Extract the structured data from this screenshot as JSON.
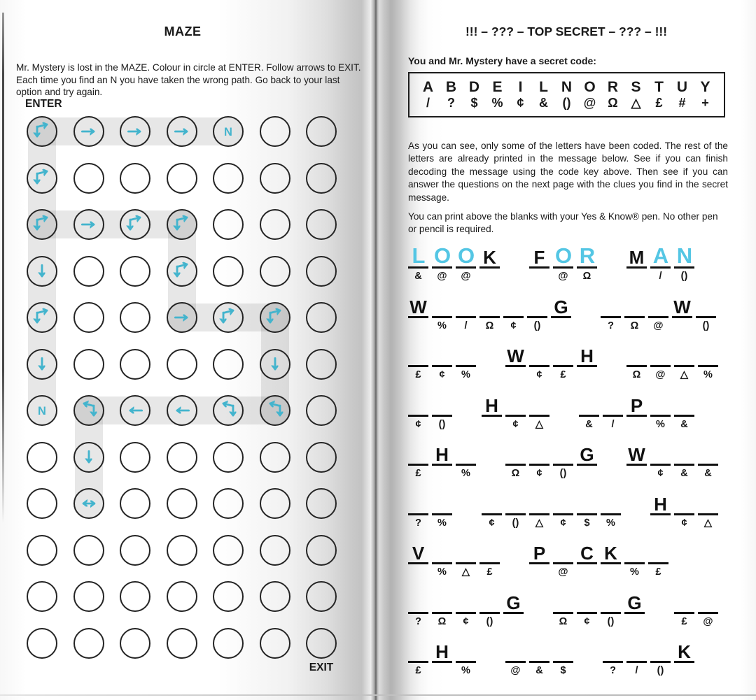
{
  "colors": {
    "arrow_blue": "#43b4cd",
    "pen_blue": "#54c6e4",
    "path_gray": "#e2e2e2",
    "circle_stroke": "#242424"
  },
  "left": {
    "title": "MAZE",
    "instructions": "Mr. Mystery is lost in the MAZE. Colour in circle at ENTER. Follow arrows to EXIT. Each time you find an N you have taken the wrong path. Go back to your last option and try again.",
    "enter_label": "ENTER",
    "exit_label": "EXIT",
    "maze": {
      "rows": 12,
      "cols": 7,
      "cell_legend": {
        "r": "right-arrow",
        "l": "left-arrow",
        "d": "down-arrow",
        "dr": "down-right-branch-arrow",
        "ld": "left-down-branch-arrow",
        "lr": "left-right-arrow",
        "n": "wrong-path-N",
        "": "empty"
      },
      "grid": [
        [
          "dr",
          "r",
          "r",
          "r",
          "n",
          "",
          ""
        ],
        [
          "dr",
          "",
          "",
          "",
          "",
          "",
          ""
        ],
        [
          "dr",
          "r",
          "dr",
          "dr",
          "",
          "",
          ""
        ],
        [
          "d",
          "",
          "",
          "dr",
          "",
          "",
          ""
        ],
        [
          "dr",
          "",
          "",
          "r",
          "dr",
          "dr",
          ""
        ],
        [
          "d",
          "",
          "",
          "",
          "",
          "d",
          ""
        ],
        [
          "n",
          "ld",
          "l",
          "l",
          "ld",
          "ld",
          ""
        ],
        [
          "",
          "d",
          "",
          "",
          "",
          "",
          ""
        ],
        [
          "",
          "lr",
          "",
          "",
          "",
          "",
          ""
        ],
        [
          "",
          "",
          "",
          "",
          "",
          "",
          ""
        ],
        [
          "",
          "",
          "",
          "",
          "",
          "",
          ""
        ],
        [
          "",
          "",
          "",
          "",
          "",
          "",
          ""
        ]
      ],
      "path_segments": [
        {
          "dir": "h",
          "row": 1,
          "from": 1,
          "to": 5
        },
        {
          "dir": "v",
          "col": 1,
          "from": 1,
          "to": 7
        },
        {
          "dir": "h",
          "row": 3,
          "from": 1,
          "to": 4
        },
        {
          "dir": "v",
          "col": 4,
          "from": 3,
          "to": 5
        },
        {
          "dir": "h",
          "row": 5,
          "from": 4,
          "to": 6
        },
        {
          "dir": "v",
          "col": 6,
          "from": 5,
          "to": 7
        },
        {
          "dir": "h",
          "row": 7,
          "from": 2,
          "to": 6
        },
        {
          "dir": "v",
          "col": 2,
          "from": 7,
          "to": 9
        }
      ]
    }
  },
  "right": {
    "title": "!!! – ??? – TOP SECRET – ??? – !!!",
    "lead": "You and Mr. Mystery have a secret code:",
    "code_key": {
      "letters": [
        "A",
        "B",
        "D",
        "E",
        "I",
        "L",
        "N",
        "O",
        "R",
        "S",
        "T",
        "U",
        "Y"
      ],
      "symbols": [
        "/",
        "?",
        "$",
        "%",
        "¢",
        "&",
        "()",
        "@",
        "Ω",
        "△",
        "£",
        "#",
        "+"
      ]
    },
    "para1": "As you can see, only some of the letters have been coded. The rest of the letters are already printed in the message below. See if you can finish decoding the message using the code key above. Then see if you can answer the questions on the next page with the clues you find in the secret message.",
    "para2": "You can print above the blanks with your Yes & Know® pen. No other pen or pencil is required.",
    "message": {
      "lines": [
        [
          [
            {
              "t": "L",
              "ink": "pen",
              "sym": "&"
            },
            {
              "t": "O",
              "ink": "pen",
              "sym": "@"
            },
            {
              "t": "O",
              "ink": "pen",
              "sym": "@"
            },
            {
              "t": "K",
              "ink": "print",
              "sym": ""
            }
          ],
          [
            {
              "t": "F",
              "ink": "print",
              "sym": ""
            },
            {
              "t": "O",
              "ink": "pen",
              "sym": "@"
            },
            {
              "t": "R",
              "ink": "pen",
              "sym": "Ω"
            }
          ],
          [
            {
              "t": "M",
              "ink": "print",
              "sym": ""
            },
            {
              "t": "A",
              "ink": "pen",
              "sym": "/"
            },
            {
              "t": "N",
              "ink": "pen",
              "sym": "()"
            }
          ]
        ],
        [
          [
            {
              "t": "W",
              "ink": "print",
              "sym": ""
            },
            {
              "t": "",
              "ink": "",
              "sym": "%"
            },
            {
              "t": "",
              "ink": "",
              "sym": "/"
            },
            {
              "t": "",
              "ink": "",
              "sym": "Ω"
            },
            {
              "t": "",
              "ink": "",
              "sym": "¢"
            },
            {
              "t": "",
              "ink": "",
              "sym": "()"
            },
            {
              "t": "G",
              "ink": "print",
              "sym": ""
            }
          ],
          [
            {
              "t": "",
              "ink": "",
              "sym": "?"
            },
            {
              "t": "",
              "ink": "",
              "sym": "Ω"
            },
            {
              "t": "",
              "ink": "",
              "sym": "@"
            },
            {
              "t": "W",
              "ink": "print",
              "sym": ""
            },
            {
              "t": "",
              "ink": "",
              "sym": "()"
            }
          ]
        ],
        [
          [
            {
              "t": "",
              "ink": "",
              "sym": "£"
            },
            {
              "t": "",
              "ink": "",
              "sym": "¢"
            },
            {
              "t": "",
              "ink": "",
              "sym": "%"
            }
          ],
          [
            {
              "t": "W",
              "ink": "print",
              "sym": ""
            },
            {
              "t": "",
              "ink": "",
              "sym": "¢"
            },
            {
              "t": "",
              "ink": "",
              "sym": "£"
            },
            {
              "t": "H",
              "ink": "print",
              "sym": ""
            }
          ],
          [
            {
              "t": "",
              "ink": "",
              "sym": "Ω"
            },
            {
              "t": "",
              "ink": "",
              "sym": "@"
            },
            {
              "t": "",
              "ink": "",
              "sym": "△"
            },
            {
              "t": "",
              "ink": "",
              "sym": "%"
            }
          ]
        ],
        [
          [
            {
              "t": "",
              "ink": "",
              "sym": "¢"
            },
            {
              "t": "",
              "ink": "",
              "sym": "()"
            }
          ],
          [
            {
              "t": "H",
              "ink": "print",
              "sym": ""
            },
            {
              "t": "",
              "ink": "",
              "sym": "¢"
            },
            {
              "t": "",
              "ink": "",
              "sym": "△"
            }
          ],
          [
            {
              "t": "",
              "ink": "",
              "sym": "&"
            },
            {
              "t": "",
              "ink": "",
              "sym": "/"
            },
            {
              "t": "P",
              "ink": "print",
              "sym": ""
            },
            {
              "t": "",
              "ink": "",
              "sym": "%"
            },
            {
              "t": "",
              "ink": "",
              "sym": "&"
            }
          ]
        ],
        [
          [
            {
              "t": "",
              "ink": "",
              "sym": "£"
            },
            {
              "t": "H",
              "ink": "print",
              "sym": ""
            },
            {
              "t": "",
              "ink": "",
              "sym": "%"
            }
          ],
          [
            {
              "t": "",
              "ink": "",
              "sym": "Ω"
            },
            {
              "t": "",
              "ink": "",
              "sym": "¢"
            },
            {
              "t": "",
              "ink": "",
              "sym": "()"
            },
            {
              "t": "G",
              "ink": "print",
              "sym": ""
            }
          ],
          [
            {
              "t": "W",
              "ink": "print",
              "sym": ""
            },
            {
              "t": "",
              "ink": "",
              "sym": "¢"
            },
            {
              "t": "",
              "ink": "",
              "sym": "&"
            },
            {
              "t": "",
              "ink": "",
              "sym": "&"
            }
          ]
        ],
        [
          [
            {
              "t": "",
              "ink": "",
              "sym": "?"
            },
            {
              "t": "",
              "ink": "",
              "sym": "%"
            }
          ],
          [
            {
              "t": "",
              "ink": "",
              "sym": "¢"
            },
            {
              "t": "",
              "ink": "",
              "sym": "()"
            },
            {
              "t": "",
              "ink": "",
              "sym": "△"
            },
            {
              "t": "",
              "ink": "",
              "sym": "¢"
            },
            {
              "t": "",
              "ink": "",
              "sym": "$"
            },
            {
              "t": "",
              "ink": "",
              "sym": "%"
            }
          ],
          [
            {
              "t": "H",
              "ink": "print",
              "sym": ""
            },
            {
              "t": "",
              "ink": "",
              "sym": "¢"
            },
            {
              "t": "",
              "ink": "",
              "sym": "△"
            }
          ]
        ],
        [
          [
            {
              "t": "V",
              "ink": "print",
              "sym": ""
            },
            {
              "t": "",
              "ink": "",
              "sym": "%"
            },
            {
              "t": "",
              "ink": "",
              "sym": "△"
            },
            {
              "t": "",
              "ink": "",
              "sym": "£"
            }
          ],
          [
            {
              "t": "P",
              "ink": "print",
              "sym": ""
            },
            {
              "t": "",
              "ink": "",
              "sym": "@"
            },
            {
              "t": "C",
              "ink": "print",
              "sym": ""
            },
            {
              "t": "K",
              "ink": "print",
              "sym": ""
            },
            {
              "t": "",
              "ink": "",
              "sym": "%"
            },
            {
              "t": "",
              "ink": "",
              "sym": "£"
            }
          ]
        ],
        [
          [
            {
              "t": "",
              "ink": "",
              "sym": "?"
            },
            {
              "t": "",
              "ink": "",
              "sym": "Ω"
            },
            {
              "t": "",
              "ink": "",
              "sym": "¢"
            },
            {
              "t": "",
              "ink": "",
              "sym": "()"
            },
            {
              "t": "G",
              "ink": "print",
              "sym": ""
            }
          ],
          [
            {
              "t": "",
              "ink": "",
              "sym": "Ω"
            },
            {
              "t": "",
              "ink": "",
              "sym": "¢"
            },
            {
              "t": "",
              "ink": "",
              "sym": "()"
            },
            {
              "t": "G",
              "ink": "print",
              "sym": ""
            }
          ],
          [
            {
              "t": "",
              "ink": "",
              "sym": "£"
            },
            {
              "t": "",
              "ink": "",
              "sym": "@"
            }
          ]
        ],
        [
          [
            {
              "t": "",
              "ink": "",
              "sym": "£"
            },
            {
              "t": "H",
              "ink": "print",
              "sym": ""
            },
            {
              "t": "",
              "ink": "",
              "sym": "%"
            }
          ],
          [
            {
              "t": "",
              "ink": "",
              "sym": "@"
            },
            {
              "t": "",
              "ink": "",
              "sym": "&"
            },
            {
              "t": "",
              "ink": "",
              "sym": "$"
            }
          ],
          [
            {
              "t": "",
              "ink": "",
              "sym": "?"
            },
            {
              "t": "",
              "ink": "",
              "sym": "/"
            },
            {
              "t": "",
              "ink": "",
              "sym": "()"
            },
            {
              "t": "K",
              "ink": "print",
              "sym": ""
            }
          ]
        ]
      ]
    }
  }
}
